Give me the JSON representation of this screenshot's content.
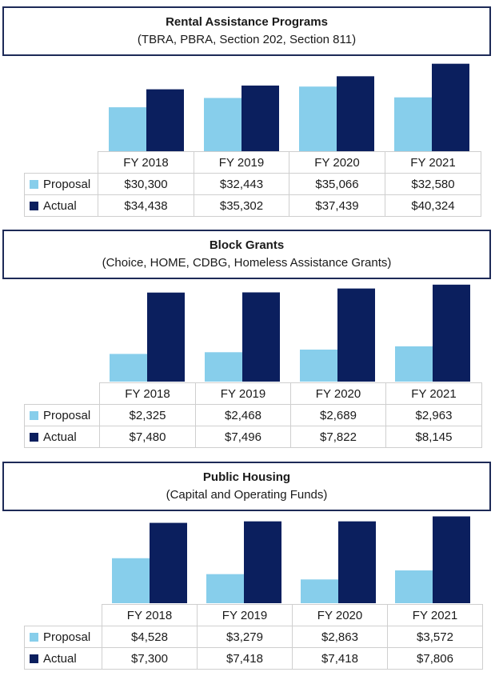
{
  "colors": {
    "proposal": "#87ceeb",
    "actual": "#0b1f5e",
    "title_border": "#1d2a57"
  },
  "chart_data": [
    {
      "type": "bar",
      "title": "Rental Assistance Programs",
      "subtitle": "(TBRA, PBRA, Section 202, Section 811)",
      "categories": [
        "FY 2018",
        "FY 2019",
        "FY 2020",
        "FY 2021"
      ],
      "series": [
        {
          "name": "Proposal",
          "values": [
            30300,
            32443,
            35066,
            32580
          ],
          "labels": [
            "$30,300",
            "$32,443",
            "$35,066",
            "$32,580"
          ]
        },
        {
          "name": "Actual",
          "values": [
            34438,
            35302,
            37439,
            40324
          ],
          "labels": [
            "$34,438",
            "$35,302",
            "$37,439",
            "$40,324"
          ]
        }
      ],
      "ylim": [
        20000,
        41000
      ]
    },
    {
      "type": "bar",
      "title": "Block Grants",
      "subtitle": "(Choice, HOME, CDBG, Homeless Assistance Grants)",
      "categories": [
        "FY 2018",
        "FY 2019",
        "FY 2020",
        "FY 2021"
      ],
      "series": [
        {
          "name": "Proposal",
          "values": [
            2325,
            2468,
            2689,
            2963
          ],
          "labels": [
            "$2,325",
            "$2,468",
            "$2,689",
            "$2,963"
          ]
        },
        {
          "name": "Actual",
          "values": [
            7480,
            7496,
            7822,
            8145
          ],
          "labels": [
            "$7,480",
            "$7,496",
            "$7,822",
            "$8,145"
          ]
        }
      ],
      "ylim": [
        0,
        8200
      ]
    },
    {
      "type": "bar",
      "title": "Public Housing",
      "subtitle": "(Capital and Operating Funds)",
      "categories": [
        "FY 2018",
        "FY 2019",
        "FY 2020",
        "FY 2021"
      ],
      "series": [
        {
          "name": "Proposal",
          "values": [
            4528,
            3279,
            2863,
            3572
          ],
          "labels": [
            "$4,528",
            "$3,279",
            "$2,863",
            "$3,572"
          ]
        },
        {
          "name": "Actual",
          "values": [
            7300,
            7418,
            7418,
            7806
          ],
          "labels": [
            "$7,300",
            "$7,418",
            "$7,418",
            "$7,806"
          ]
        }
      ],
      "ylim": [
        1000,
        7900
      ]
    }
  ]
}
